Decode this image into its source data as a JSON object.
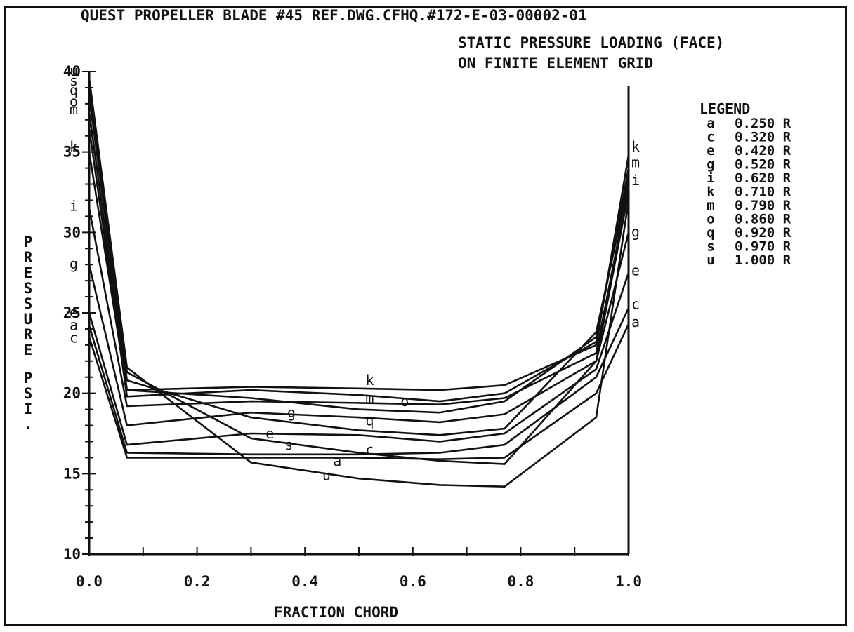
{
  "chart_data": {
    "type": "line",
    "title": "QUEST PROPELLER BLADE #45   REF.DWG.CFHQ.#172-E-03-00002-01",
    "subtitle_lines": [
      "STATIC PRESSURE LOADING (FACE)",
      "ON FINITE ELEMENT GRID"
    ],
    "xlabel": "FRACTION  CHORD",
    "ylabel": "PRESSURE PSI.",
    "xlim": [
      0.0,
      1.0
    ],
    "ylim": [
      10,
      40
    ],
    "x_ticks": [
      "0.0",
      "0.2",
      "0.4",
      "0.6",
      "0.8",
      "1.0"
    ],
    "y_ticks": [
      "10",
      "15",
      "20",
      "25",
      "30",
      "35",
      "40"
    ],
    "legend_title": "LEGEND",
    "legend_placement": "right",
    "x": [
      0.0,
      0.07,
      0.3,
      0.5,
      0.65,
      0.77,
      0.94,
      1.0
    ],
    "series": [
      {
        "name": "a",
        "legend_value": "0.250 R",
        "values": [
          23.5,
          16.0,
          16.0,
          16.0,
          15.9,
          16.0,
          20.0,
          24.3
        ]
      },
      {
        "name": "c",
        "legend_value": "0.320 R",
        "values": [
          24.2,
          16.3,
          16.2,
          16.2,
          16.3,
          16.8,
          21.0,
          25.3
        ]
      },
      {
        "name": "e",
        "legend_value": "0.420 R",
        "values": [
          25.0,
          16.8,
          17.5,
          17.4,
          17.0,
          17.5,
          21.5,
          27.5
        ]
      },
      {
        "name": "g",
        "legend_value": "0.520 R",
        "values": [
          28.0,
          18.0,
          18.8,
          18.5,
          18.2,
          18.7,
          22.0,
          30.0
        ]
      },
      {
        "name": "i",
        "legend_value": "0.620 R",
        "values": [
          31.5,
          19.2,
          19.5,
          19.4,
          19.3,
          19.7,
          22.5,
          32.8
        ]
      },
      {
        "name": "k",
        "legend_value": "0.710 R",
        "values": [
          35.0,
          20.2,
          20.4,
          20.3,
          20.2,
          20.5,
          23.0,
          34.8
        ]
      },
      {
        "name": "m",
        "legend_value": "0.790 R",
        "values": [
          36.5,
          19.8,
          20.2,
          19.9,
          19.5,
          20.0,
          23.2,
          34.0
        ]
      },
      {
        "name": "o",
        "legend_value": "0.860 R",
        "values": [
          37.5,
          20.2,
          19.7,
          19.0,
          18.8,
          19.5,
          23.5,
          33.5
        ]
      },
      {
        "name": "q",
        "legend_value": "0.920 R",
        "values": [
          38.5,
          20.8,
          18.5,
          17.7,
          17.4,
          17.8,
          23.8,
          33.0
        ]
      },
      {
        "name": "s",
        "legend_value": "0.970 R",
        "values": [
          39.3,
          21.3,
          17.2,
          16.3,
          15.8,
          15.6,
          22.0,
          32.5
        ]
      },
      {
        "name": "u",
        "legend_value": "1.000 R",
        "values": [
          39.6,
          21.6,
          15.7,
          14.7,
          14.3,
          14.2,
          18.5,
          32.0
        ]
      }
    ],
    "curve_labels": [
      {
        "text": "a",
        "x": 0.46,
        "y": 15.5
      },
      {
        "text": "c",
        "x": 0.52,
        "y": 16.2
      },
      {
        "text": "e",
        "x": 0.335,
        "y": 17.2
      },
      {
        "text": "g",
        "x": 0.375,
        "y": 18.5
      },
      {
        "text": "k",
        "x": 0.52,
        "y": 20.5
      },
      {
        "text": "m",
        "x": 0.52,
        "y": 19.4
      },
      {
        "text": "o",
        "x": 0.585,
        "y": 19.2
      },
      {
        "text": "q",
        "x": 0.52,
        "y": 18.0
      },
      {
        "text": "s",
        "x": 0.37,
        "y": 16.5
      },
      {
        "text": "u",
        "x": 0.44,
        "y": 14.6
      }
    ],
    "left_end_labels": [
      {
        "text": "u",
        "y": 40.0
      },
      {
        "text": "s",
        "y": 39.4
      },
      {
        "text": "q",
        "y": 38.8
      },
      {
        "text": "o",
        "y": 38.1
      },
      {
        "text": "m",
        "y": 37.6
      },
      {
        "text": "k",
        "y": 35.3
      },
      {
        "text": "i",
        "y": 31.6
      },
      {
        "text": "g",
        "y": 28.0
      },
      {
        "text": "e",
        "y": 25.0
      },
      {
        "text": "a",
        "y": 24.2
      },
      {
        "text": "c",
        "y": 23.4
      }
    ],
    "right_end_labels": [
      {
        "text": "k",
        "y": 35.3
      },
      {
        "text": "m",
        "y": 34.3
      },
      {
        "text": "i",
        "y": 33.2
      },
      {
        "text": "g",
        "y": 30.0
      },
      {
        "text": "e",
        "y": 27.6
      },
      {
        "text": "c",
        "y": 25.5
      },
      {
        "text": "a",
        "y": 24.4
      }
    ]
  }
}
